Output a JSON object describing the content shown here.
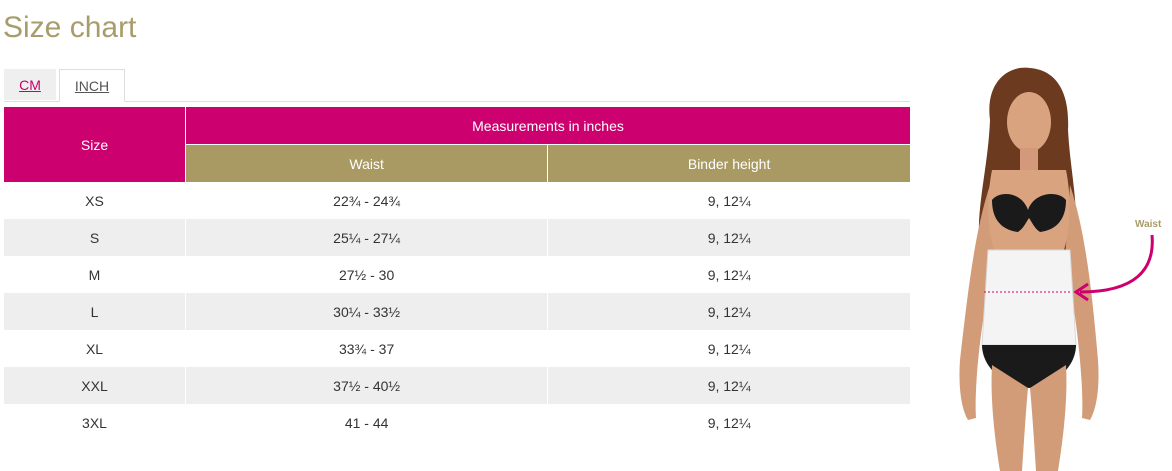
{
  "page": {
    "title": "Size chart"
  },
  "tabs": [
    {
      "label": "CM",
      "active": false
    },
    {
      "label": "INCH",
      "active": true
    }
  ],
  "table": {
    "headers": {
      "size": "Size",
      "group": "Measurements in inches",
      "waist": "Waist",
      "binder_height": "Binder height"
    },
    "rows": [
      {
        "size": "XS",
        "waist": "22¾ - 24¾",
        "binder_height": "9, 12¼"
      },
      {
        "size": "S",
        "waist": "25¼ - 27¼",
        "binder_height": "9, 12¼"
      },
      {
        "size": "M",
        "waist": "27½ - 30",
        "binder_height": "9, 12¼"
      },
      {
        "size": "L",
        "waist": "30¼ - 33½",
        "binder_height": "9, 12¼"
      },
      {
        "size": "XL",
        "waist": "33¾ - 37",
        "binder_height": "9, 12¼"
      },
      {
        "size": "XXL",
        "waist": "37½ - 40½",
        "binder_height": "9, 12¼"
      },
      {
        "size": "3XL",
        "waist": "41 - 44",
        "binder_height": "9, 12¼"
      }
    ]
  },
  "figure": {
    "waist_label": "Waist"
  },
  "colors": {
    "brand_pink": "#cc006e",
    "gold": "#a99a63",
    "row_alt": "#eeeeee"
  }
}
